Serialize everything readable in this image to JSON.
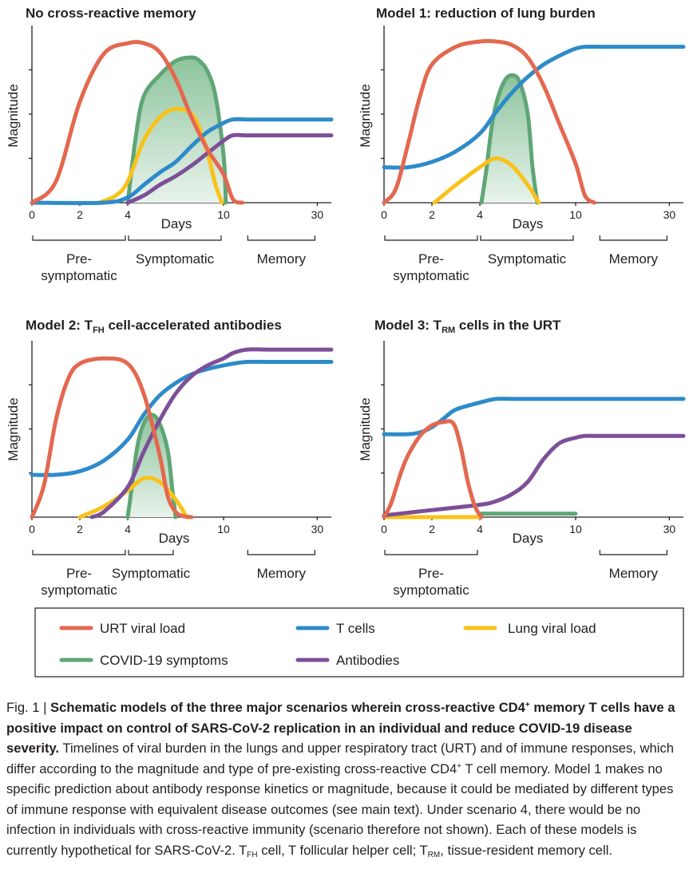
{
  "chart_data": [
    {
      "type": "line",
      "title": "No cross-reactive memory",
      "ylabel": "Magnitude",
      "xlabel": "Days",
      "x_ticks": [
        "0",
        "2",
        "4",
        "10",
        "30"
      ],
      "phases": [
        {
          "lines": [
            "Pre-",
            "symptomatic"
          ],
          "from": 0,
          "to": 4
        },
        {
          "lines": [
            "Symptomatic"
          ],
          "from": 4,
          "to": 10
        },
        {
          "lines": [
            "Memory"
          ],
          "from": 15,
          "to": 30
        }
      ],
      "series": [
        {
          "name": "URT viral load",
          "key": "urt",
          "x": [
            0,
            1,
            2,
            3,
            4,
            5,
            6,
            7,
            8,
            9,
            10,
            12,
            14
          ],
          "y": [
            0,
            12,
            57,
            84,
            90,
            90,
            85,
            70,
            48,
            30,
            16,
            2,
            0
          ]
        },
        {
          "name": "COVID-19 symptoms",
          "key": "symptoms",
          "x": [
            4,
            4.5,
            5,
            6,
            7,
            8,
            8.5,
            9,
            9.5,
            10,
            10.5
          ],
          "y": [
            0,
            37,
            60,
            72,
            80,
            82,
            80,
            74,
            60,
            27,
            0
          ]
        },
        {
          "name": "Lung viral load",
          "key": "lung",
          "x": [
            2.8,
            3.5,
            4,
            5,
            6,
            7,
            8,
            8.5,
            9,
            9.5,
            9.9
          ],
          "y": [
            0,
            4,
            12,
            35,
            48,
            53,
            50,
            42,
            28,
            10,
            0
          ]
        },
        {
          "name": "T cells",
          "key": "tcells",
          "x": [
            0,
            3,
            4,
            5,
            6,
            7,
            8,
            9,
            10,
            12,
            15,
            20,
            30,
            33
          ],
          "y": [
            0,
            0,
            3,
            10,
            17,
            23,
            32,
            40,
            45,
            47,
            47,
            47,
            47,
            47
          ]
        },
        {
          "name": "Antibodies",
          "key": "antibodies",
          "x": [
            4,
            5,
            6,
            7,
            8,
            9,
            10,
            12,
            15,
            20,
            30,
            33
          ],
          "y": [
            0,
            4,
            10,
            15,
            21,
            28,
            35,
            38,
            38,
            38,
            38,
            38
          ]
        }
      ]
    },
    {
      "type": "line",
      "title": "Model 1: reduction of lung burden",
      "ylabel": "Magnitude",
      "xlabel": "Days",
      "x_ticks": [
        "0",
        "2",
        "4",
        "10",
        "30"
      ],
      "phases": [
        {
          "lines": [
            "Pre-",
            "symptomatic"
          ],
          "from": 0,
          "to": 4
        },
        {
          "lines": [
            "Symptomatic"
          ],
          "from": 4,
          "to": 10
        },
        {
          "lines": [
            "Memory"
          ],
          "from": 15,
          "to": 30
        }
      ],
      "series": [
        {
          "name": "URT viral load",
          "key": "urt",
          "x": [
            0,
            0.5,
            1,
            1.5,
            2,
            3,
            4,
            5,
            6,
            7,
            8,
            9,
            10,
            12,
            14
          ],
          "y": [
            0,
            8,
            33,
            60,
            78,
            88,
            91,
            91,
            89,
            82,
            66,
            44,
            22,
            4,
            0
          ]
        },
        {
          "name": "COVID-19 symptoms",
          "key": "symptoms",
          "x": [
            4.1,
            4.4,
            4.7,
            5,
            5.5,
            6,
            6.5,
            7,
            7.3,
            7.6
          ],
          "y": [
            0,
            18,
            40,
            55,
            68,
            72,
            68,
            50,
            20,
            0
          ]
        },
        {
          "name": "Lung viral load",
          "key": "lung",
          "x": [
            2.1,
            3,
            4,
            5,
            6,
            7,
            7.7
          ],
          "y": [
            0,
            10,
            20,
            25,
            21,
            10,
            0
          ]
        },
        {
          "name": "T cells",
          "key": "tcells",
          "x": [
            0,
            1,
            2,
            3,
            4,
            5,
            6,
            7,
            8,
            9,
            10,
            12,
            15,
            20,
            30,
            33
          ],
          "y": [
            20,
            20,
            23,
            29,
            39,
            51,
            62,
            71,
            78,
            83,
            87,
            88,
            88,
            88,
            88,
            88
          ]
        }
      ]
    },
    {
      "type": "line",
      "title": "Model 2: T",
      "title_sub": "FH",
      "title_rest": " cell-accelerated antibodies",
      "ylabel": "Magnitude",
      "xlabel": "Days",
      "x_ticks": [
        "0",
        "2",
        "4",
        "10",
        "30"
      ],
      "phases": [
        {
          "lines": [
            "Pre-",
            "symptomatic"
          ],
          "from": 0,
          "to": 4
        },
        {
          "lines": [
            "Symptomatic"
          ],
          "from": 4,
          "to": 7
        },
        {
          "lines": [
            "Memory"
          ],
          "from": 15,
          "to": 30
        }
      ],
      "series": [
        {
          "name": "URT viral load",
          "key": "urt",
          "x": [
            0,
            0.5,
            1,
            1.5,
            2,
            3,
            4,
            5,
            6,
            6.5,
            7,
            7.5,
            8
          ],
          "y": [
            0,
            18,
            55,
            78,
            87,
            90,
            87,
            70,
            35,
            12,
            3,
            0.5,
            0
          ]
        },
        {
          "name": "COVID-19 symptoms",
          "key": "symptoms",
          "x": [
            4,
            4.3,
            4.6,
            5,
            5.5,
            6,
            6.5,
            6.8,
            7
          ],
          "y": [
            0,
            20,
            40,
            53,
            58,
            53,
            38,
            15,
            0
          ]
        },
        {
          "name": "Lung viral load",
          "key": "lung",
          "x": [
            2,
            3,
            4,
            5,
            6,
            7,
            7.7
          ],
          "y": [
            0,
            6,
            15,
            22,
            20,
            10,
            0
          ]
        },
        {
          "name": "T cells",
          "key": "tcells",
          "x": [
            0,
            1,
            2,
            3,
            4,
            5,
            6,
            7,
            8,
            9,
            10,
            12,
            15,
            20,
            30,
            33
          ],
          "y": [
            24,
            24,
            26,
            32,
            44,
            58,
            69,
            76,
            81,
            84,
            86,
            87,
            88,
            88,
            88,
            88
          ]
        },
        {
          "name": "Antibodies",
          "key": "antibodies",
          "x": [
            2.5,
            3,
            4,
            5,
            6,
            7,
            8,
            9,
            10,
            12,
            15,
            20,
            30,
            33
          ],
          "y": [
            0,
            3,
            17,
            37,
            55,
            70,
            80,
            86,
            90,
            93,
            95,
            95,
            95,
            95
          ]
        }
      ]
    },
    {
      "type": "line",
      "title": "Model 3: T",
      "title_sub": "RM",
      "title_rest": " cells in the URT",
      "ylabel": "Magnitude",
      "xlabel": "Days",
      "x_ticks": [
        "0",
        "2",
        "4",
        "10",
        "30"
      ],
      "phases": [
        {
          "lines": [
            "Pre-",
            "symptomatic"
          ],
          "from": 0,
          "to": 4
        },
        {
          "lines": [
            "Memory"
          ],
          "from": 15,
          "to": 30
        }
      ],
      "series": [
        {
          "name": "URT viral load",
          "key": "urt",
          "x": [
            0,
            0.3,
            0.7,
            1,
            1.5,
            2,
            2.5,
            2.9,
            3.2,
            3.5,
            3.8,
            4.1
          ],
          "y": [
            0,
            8,
            25,
            35,
            46,
            52,
            54,
            53,
            40,
            20,
            6,
            0
          ]
        },
        {
          "name": "COVID-19 symptoms",
          "key": "symptoms",
          "x": [
            4.1,
            10
          ],
          "y": [
            2,
            2
          ]
        },
        {
          "name": "Lung viral load",
          "key": "lung",
          "x": [
            0,
            4.1
          ],
          "y": [
            0,
            0
          ]
        },
        {
          "name": "T cells",
          "key": "tcells",
          "x": [
            0,
            1,
            1.5,
            2,
            2.5,
            3,
            4,
            5,
            6,
            7,
            8,
            10,
            15,
            20,
            30,
            33
          ],
          "y": [
            47,
            47,
            48,
            51,
            56,
            61,
            65,
            67,
            67,
            67,
            67,
            67,
            67,
            67,
            67,
            67
          ]
        },
        {
          "name": "Antibodies",
          "key": "antibodies",
          "x": [
            0,
            2,
            4,
            5,
            6,
            7,
            8,
            9,
            10,
            12,
            15,
            20,
            30,
            33
          ],
          "y": [
            1,
            4,
            7,
            9,
            13,
            20,
            33,
            42,
            45,
            46,
            46,
            46,
            46,
            46
          ]
        }
      ]
    }
  ],
  "colors": {
    "urt": "#e3684f",
    "tcells": "#2e8bc9",
    "lung": "#f9c21a",
    "symptoms": "#5fa676",
    "antibodies": "#7d4f98",
    "symptoms_fill_top": "#8dc49d",
    "symptoms_fill_bottom": "#e8f3eb",
    "axis": "#231f20"
  },
  "legend": [
    {
      "key": "urt",
      "label": "URT viral load"
    },
    {
      "key": "tcells",
      "label": "T cells"
    },
    {
      "key": "lung",
      "label": "Lung viral load"
    },
    {
      "key": "symptoms",
      "label": "COVID-19 symptoms"
    },
    {
      "key": "antibodies",
      "label": "Antibodies"
    }
  ],
  "caption": {
    "fig_label": "Fig. 1 | ",
    "bold_1": "Schematic models of the three major scenarios wherein cross-reactive CD4",
    "bold_sup": "+",
    "bold_2": " memory T cells have a positive impact on control of SARS-CoV-2 replication in an individual and reduce COVID-19 disease severity.",
    "text_1": " Timelines of viral burden in the lungs and upper respiratory tract (URT) and of immune responses, which differ according to the magnitude and type of pre-existing cross-reactive CD4",
    "text_sup": "+",
    "text_2": " T cell memory. Model 1 makes no specific prediction about antibody response kinetics or magnitude, because it could be mediated by different types of immune response with equivalent disease outcomes (see main text). Under scenario 4, there would be no infection in individuals with cross-reactive immunity (scenario therefore not shown). Each of these models is currently hypothetical for SARS-CoV-2. T",
    "abbr_tfh_sub": "FH",
    "text_3": " cell, T follicular helper cell; T",
    "abbr_trm_sub": "RM",
    "text_4": ", tissue-resident memory cell."
  }
}
